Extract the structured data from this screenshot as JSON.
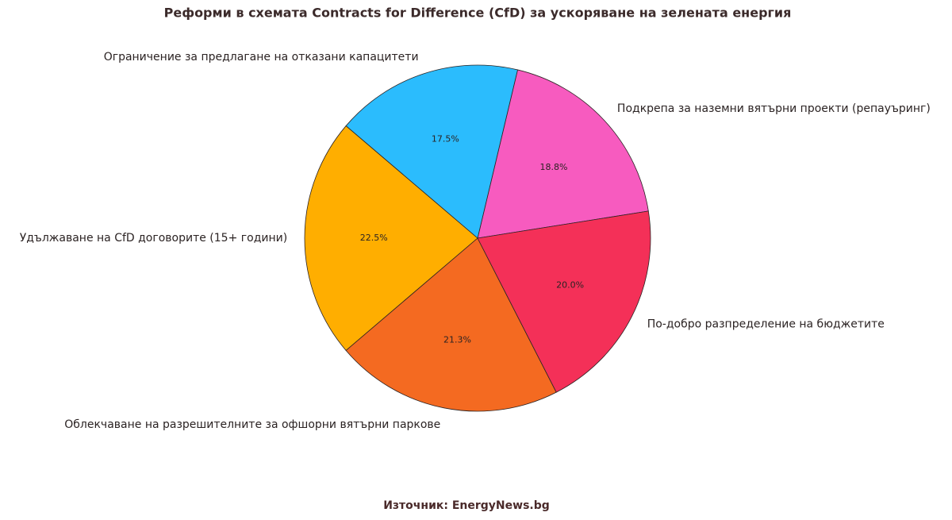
{
  "chart_data": {
    "type": "pie",
    "title": "Реформи в схемата Contracts for Difference (CfD) за ускоряване на зелената енергия",
    "categories": [
      "Подкрепа за наземни вятърни проекти (репауъринг)",
      "Ограничение за предлагане на отказани капацитети",
      "Удължаване на CfD договорите (15+ години)",
      "Облекчаване на разрешителните за офшорни вятърни паркове",
      "По-добро разпределение на бюджетите"
    ],
    "values": [
      18.8,
      17.5,
      22.5,
      21.3,
      20.0
    ],
    "value_labels": [
      "18.8%",
      "17.5%",
      "22.5%",
      "21.3%",
      "20.0%"
    ],
    "colors": [
      "#f75bbf",
      "#2bbcfd",
      "#ffae00",
      "#f46a21",
      "#f43058"
    ],
    "source": "Източник: EnergyNews.bg"
  }
}
